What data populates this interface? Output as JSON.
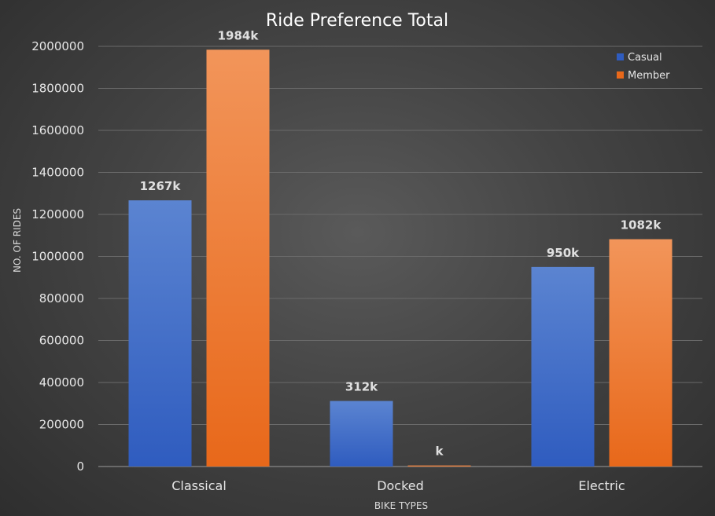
{
  "chart_data": {
    "type": "bar",
    "title": "Ride Preference Total",
    "xlabel": "BIKE TYPES",
    "ylabel": "NO. OF RIDES",
    "categories": [
      "Classical",
      "Docked",
      "Electric"
    ],
    "series": [
      {
        "name": "Casual",
        "values": [
          1267000,
          312000,
          950000
        ],
        "labels": [
          "1267k",
          "312k",
          "950k"
        ],
        "color_top": "#5b84d1",
        "color_bottom": "#2f5cbf"
      },
      {
        "name": "Member",
        "values": [
          1984000,
          5000,
          1082000
        ],
        "labels": [
          "1984k",
          "k",
          "1082k"
        ],
        "color_top": "#f2955a",
        "color_bottom": "#e8681a"
      }
    ],
    "ylim": [
      0,
      2000000
    ],
    "yticks": [
      "0",
      "200000",
      "400000",
      "600000",
      "800000",
      "1000000",
      "1200000",
      "1400000",
      "1600000",
      "1800000",
      "2000000"
    ],
    "grid": true,
    "legend_position": "top-right"
  }
}
